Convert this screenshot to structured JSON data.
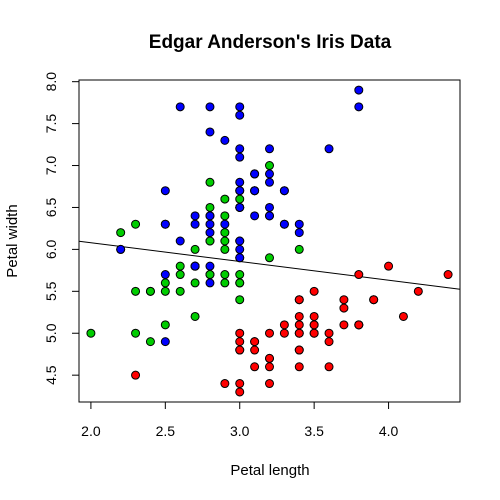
{
  "chart_data": {
    "type": "scatter",
    "title": "Edgar Anderson's Iris Data",
    "xlabel": "Petal length",
    "ylabel": "Petal width",
    "xlim": [
      1.92,
      4.48
    ],
    "ylim": [
      4.18,
      8.02
    ],
    "x_ticks": [
      "2.0",
      "2.5",
      "3.0",
      "3.5",
      "4.0"
    ],
    "y_ticks": [
      "4.5",
      "5.0",
      "5.5",
      "6.0",
      "6.5",
      "7.0",
      "7.5",
      "8.0"
    ],
    "grid": false,
    "legend": "none",
    "series": [
      {
        "color": "#ff0000",
        "points": [
          [
            3.5,
            5.1
          ],
          [
            3.0,
            4.9
          ],
          [
            3.2,
            4.7
          ],
          [
            3.1,
            4.6
          ],
          [
            3.6,
            5.0
          ],
          [
            3.9,
            5.4
          ],
          [
            3.4,
            4.6
          ],
          [
            3.4,
            5.0
          ],
          [
            2.9,
            4.4
          ],
          [
            3.1,
            4.9
          ],
          [
            3.7,
            5.4
          ],
          [
            3.4,
            4.8
          ],
          [
            3.0,
            4.8
          ],
          [
            3.0,
            4.3
          ],
          [
            4.0,
            5.8
          ],
          [
            4.4,
            5.7
          ],
          [
            3.9,
            5.4
          ],
          [
            3.5,
            5.1
          ],
          [
            3.8,
            5.7
          ],
          [
            3.8,
            5.1
          ],
          [
            3.4,
            5.4
          ],
          [
            3.7,
            5.1
          ],
          [
            3.6,
            4.6
          ],
          [
            3.3,
            5.1
          ],
          [
            3.4,
            4.8
          ],
          [
            3.0,
            5.0
          ],
          [
            3.4,
            5.0
          ],
          [
            3.5,
            5.2
          ],
          [
            3.4,
            5.2
          ],
          [
            3.2,
            4.7
          ],
          [
            3.1,
            4.8
          ],
          [
            3.4,
            5.4
          ],
          [
            4.1,
            5.2
          ],
          [
            4.2,
            5.5
          ],
          [
            3.1,
            4.9
          ],
          [
            3.2,
            5.0
          ],
          [
            3.5,
            5.5
          ],
          [
            3.6,
            4.9
          ],
          [
            3.0,
            4.4
          ],
          [
            3.4,
            5.1
          ],
          [
            3.5,
            5.0
          ],
          [
            2.3,
            4.5
          ],
          [
            3.2,
            4.4
          ],
          [
            3.5,
            5.0
          ],
          [
            3.8,
            5.1
          ],
          [
            3.0,
            4.8
          ],
          [
            3.8,
            5.1
          ],
          [
            3.2,
            4.6
          ],
          [
            3.7,
            5.3
          ],
          [
            3.3,
            5.0
          ]
        ]
      },
      {
        "color": "#00cd00",
        "points": [
          [
            3.2,
            7.0
          ],
          [
            3.2,
            6.4
          ],
          [
            3.1,
            6.9
          ],
          [
            2.3,
            5.5
          ],
          [
            2.8,
            6.5
          ],
          [
            2.8,
            5.7
          ],
          [
            3.3,
            6.3
          ],
          [
            2.4,
            4.9
          ],
          [
            2.9,
            6.6
          ],
          [
            2.7,
            5.2
          ],
          [
            2.0,
            5.0
          ],
          [
            3.0,
            5.9
          ],
          [
            2.2,
            6.0
          ],
          [
            2.9,
            6.1
          ],
          [
            2.9,
            5.6
          ],
          [
            3.1,
            6.7
          ],
          [
            3.0,
            5.6
          ],
          [
            2.7,
            5.8
          ],
          [
            2.2,
            6.2
          ],
          [
            2.5,
            5.6
          ],
          [
            3.2,
            5.9
          ],
          [
            2.8,
            6.1
          ],
          [
            2.5,
            6.3
          ],
          [
            2.8,
            6.1
          ],
          [
            2.9,
            6.4
          ],
          [
            3.0,
            6.6
          ],
          [
            2.8,
            6.8
          ],
          [
            3.0,
            6.7
          ],
          [
            2.9,
            6.0
          ],
          [
            2.6,
            5.7
          ],
          [
            2.4,
            5.5
          ],
          [
            2.4,
            5.5
          ],
          [
            2.7,
            5.8
          ],
          [
            2.7,
            6.0
          ],
          [
            3.0,
            5.4
          ],
          [
            3.4,
            6.0
          ],
          [
            3.1,
            6.7
          ],
          [
            2.3,
            6.3
          ],
          [
            3.0,
            5.6
          ],
          [
            2.5,
            5.5
          ],
          [
            2.6,
            5.5
          ],
          [
            3.0,
            6.1
          ],
          [
            2.6,
            5.8
          ],
          [
            2.3,
            5.0
          ],
          [
            2.7,
            5.6
          ],
          [
            3.0,
            5.7
          ],
          [
            2.9,
            5.7
          ],
          [
            2.9,
            6.2
          ],
          [
            2.5,
            5.1
          ],
          [
            2.8,
            5.7
          ]
        ]
      },
      {
        "color": "#0000ff",
        "points": [
          [
            3.3,
            6.3
          ],
          [
            2.7,
            5.8
          ],
          [
            3.0,
            7.1
          ],
          [
            2.9,
            6.3
          ],
          [
            3.0,
            6.5
          ],
          [
            3.0,
            7.6
          ],
          [
            2.5,
            4.9
          ],
          [
            2.9,
            7.3
          ],
          [
            2.5,
            6.7
          ],
          [
            3.6,
            7.2
          ],
          [
            3.2,
            6.5
          ],
          [
            2.7,
            6.4
          ],
          [
            3.0,
            6.8
          ],
          [
            2.5,
            5.7
          ],
          [
            2.8,
            5.8
          ],
          [
            3.2,
            6.4
          ],
          [
            3.0,
            6.5
          ],
          [
            3.8,
            7.7
          ],
          [
            2.6,
            7.7
          ],
          [
            2.2,
            6.0
          ],
          [
            3.2,
            6.9
          ],
          [
            2.8,
            5.6
          ],
          [
            2.8,
            7.7
          ],
          [
            2.7,
            6.3
          ],
          [
            3.3,
            6.7
          ],
          [
            3.2,
            7.2
          ],
          [
            2.8,
            6.2
          ],
          [
            3.0,
            6.1
          ],
          [
            2.8,
            6.4
          ],
          [
            3.0,
            7.2
          ],
          [
            2.8,
            7.4
          ],
          [
            3.8,
            7.9
          ],
          [
            2.8,
            6.4
          ],
          [
            2.8,
            6.3
          ],
          [
            2.6,
            6.1
          ],
          [
            3.0,
            7.7
          ],
          [
            3.4,
            6.3
          ],
          [
            3.1,
            6.4
          ],
          [
            3.0,
            6.0
          ],
          [
            3.1,
            6.9
          ],
          [
            3.1,
            6.7
          ],
          [
            3.1,
            6.9
          ],
          [
            2.7,
            5.8
          ],
          [
            3.2,
            6.8
          ],
          [
            3.3,
            6.7
          ],
          [
            3.0,
            6.7
          ],
          [
            2.5,
            6.3
          ],
          [
            3.0,
            6.5
          ],
          [
            3.4,
            6.2
          ],
          [
            3.0,
            5.9
          ]
        ]
      }
    ],
    "regression_line": {
      "intercept": 6.526,
      "slope": -0.2234,
      "color": "#000000"
    }
  }
}
